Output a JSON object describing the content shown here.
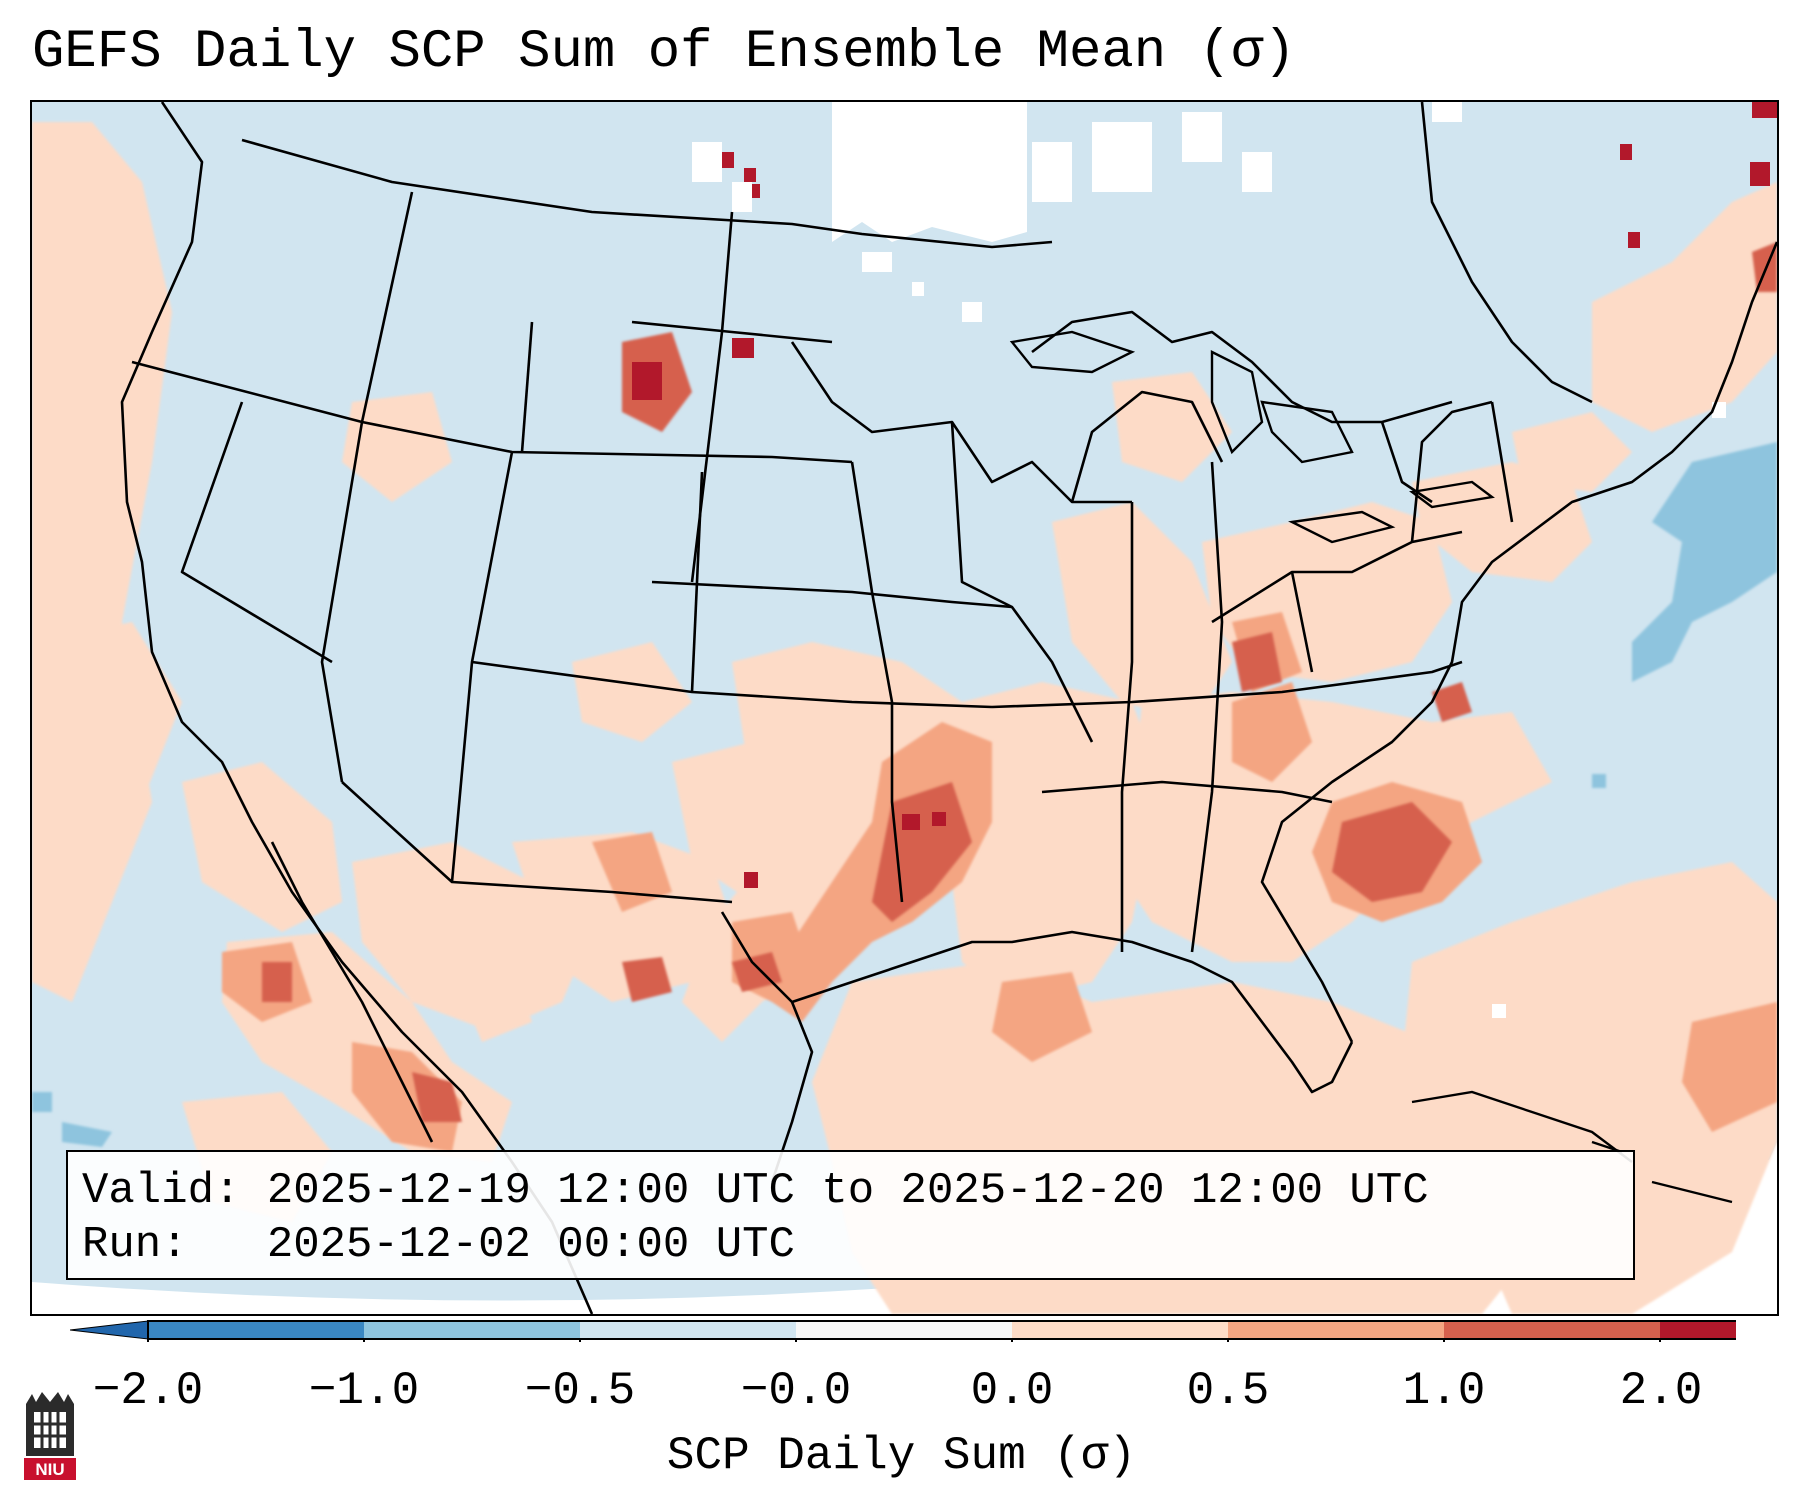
{
  "title": "GEFS Daily SCP Sum of Ensemble Mean (σ)",
  "info": {
    "valid_label": "Valid:",
    "valid_value": "2025-12-19 12:00 UTC to 2025-12-20 12:00 UTC",
    "run_label": "Run:",
    "run_value": "2025-12-02 00:00 UTC"
  },
  "colorbar": {
    "label": "SCP Daily Sum (σ)",
    "ticks": [
      "−2.0",
      "−1.0",
      "−0.5",
      "−0.0",
      "0.0",
      "0.5",
      "1.0",
      "2.0"
    ],
    "colors": [
      "#3a87c2",
      "#8ec4de",
      "#d1e5f0",
      "#f7f7f7",
      "#fddbc7",
      "#f4a582",
      "#d6604d",
      "#b2182b"
    ],
    "extend_low_color": "#2166ac",
    "extend_high_color": "#b2182b"
  },
  "legend_colors": {
    "near_zero_negative": "#d1e5f0",
    "near_zero_positive": "#fddbc7",
    "moderate_positive": "#f4a582",
    "high_positive": "#d6604d",
    "very_high_positive": "#b2182b",
    "moderate_negative": "#8ec4de",
    "borders": "#000000"
  },
  "logo": {
    "name": "niu-logo",
    "text": "NIU"
  }
}
